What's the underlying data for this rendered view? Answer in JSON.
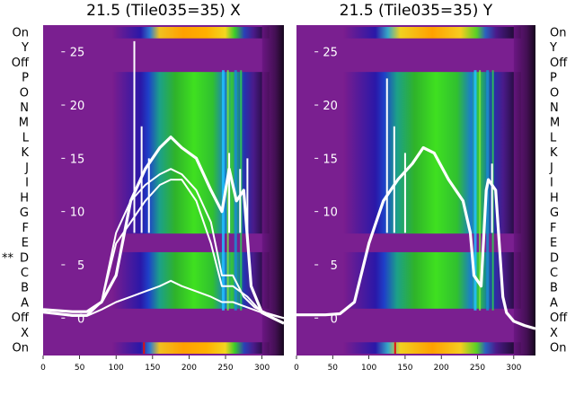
{
  "chart_data": [
    {
      "type": "heatmap",
      "title": "21.5 (Tile035=35) X",
      "x_ticks": [
        0,
        50,
        100,
        150,
        200,
        250,
        300
      ],
      "xlim": [
        0,
        330
      ],
      "overlay_ticks": [
        0,
        5,
        10,
        15,
        20,
        25
      ],
      "overlay_ylim": [
        -2,
        27
      ],
      "row_labels_side": "left",
      "row_labels": [
        "On",
        "Y",
        "Off",
        "P",
        "O",
        "N",
        "M",
        "L",
        "K",
        "J",
        "I",
        "H",
        "G",
        "F",
        "E",
        "D",
        "C",
        "B",
        "A",
        "Off",
        "X",
        "On"
      ],
      "marker": "**",
      "marker_row": "D",
      "series": [
        {
          "name": "",
          "x": [
            0,
            40,
            60,
            80,
            100,
            120,
            140,
            160,
            175,
            190,
            210,
            230,
            245,
            255,
            265,
            275,
            285,
            300,
            315,
            330
          ],
          "y": [
            0.8,
            0.6,
            0.6,
            1.5,
            4,
            11,
            14,
            16,
            17,
            16,
            15,
            12,
            10,
            14,
            11,
            12,
            3,
            0.5,
            0,
            -0.5
          ]
        },
        {
          "name": "",
          "x": [
            0,
            40,
            60,
            80,
            100,
            120,
            140,
            160,
            175,
            190,
            210,
            230,
            245,
            260,
            275,
            290,
            305,
            330
          ],
          "y": [
            0.6,
            0.3,
            0.3,
            1.5,
            8,
            11,
            12.5,
            13.5,
            14,
            13.5,
            12,
            9,
            4,
            4,
            2,
            1,
            0.5,
            0
          ]
        },
        {
          "name": "",
          "x": [
            0,
            40,
            60,
            80,
            100,
            120,
            140,
            160,
            175,
            190,
            210,
            230,
            245,
            260,
            280,
            300,
            330
          ],
          "y": [
            0.6,
            0.2,
            0.2,
            1.5,
            7,
            9,
            11,
            12.5,
            13,
            13,
            11,
            7,
            3,
            3,
            2,
            0.5,
            0
          ]
        },
        {
          "name": "",
          "x": [
            0,
            40,
            60,
            80,
            100,
            120,
            140,
            160,
            175,
            190,
            210,
            230,
            245,
            260,
            280,
            300,
            330
          ],
          "y": [
            0.5,
            0.2,
            0.2,
            0.8,
            1.5,
            2,
            2.5,
            3,
            3.5,
            3,
            2.5,
            2,
            1.5,
            1.5,
            1,
            0.5,
            0
          ]
        }
      ],
      "spikes": [
        {
          "x": 125,
          "y": 26
        },
        {
          "x": 135,
          "y": 18
        },
        {
          "x": 145,
          "y": 15
        },
        {
          "x": 255,
          "y": 15.5
        },
        {
          "x": 270,
          "y": 14
        },
        {
          "x": 280,
          "y": 15
        }
      ]
    },
    {
      "type": "heatmap",
      "title": "21.5 (Tile035=35) Y",
      "x_ticks": [
        0,
        50,
        100,
        150,
        200,
        250,
        300
      ],
      "xlim": [
        0,
        330
      ],
      "overlay_ticks": [
        0,
        5,
        10,
        15,
        20,
        25
      ],
      "overlay_ylim": [
        -2,
        27
      ],
      "row_labels_side": "right",
      "row_labels": [
        "On",
        "Y",
        "Off",
        "P",
        "O",
        "N",
        "M",
        "L",
        "K",
        "J",
        "I",
        "H",
        "G",
        "F",
        "E",
        "D",
        "C",
        "B",
        "A",
        "Off",
        "X",
        "On"
      ],
      "series": [
        {
          "name": "",
          "x": [
            0,
            40,
            60,
            80,
            100,
            120,
            140,
            160,
            175,
            190,
            210,
            230,
            240,
            245,
            255,
            262,
            265,
            275,
            285,
            290,
            300,
            315,
            330
          ],
          "y": [
            0.3,
            0.3,
            0.4,
            1.5,
            7,
            11,
            13,
            14.5,
            16,
            15.5,
            13,
            11,
            8,
            4,
            3,
            12,
            13,
            12,
            2,
            0.5,
            -0.3,
            -0.7,
            -1
          ]
        }
      ],
      "spikes": [
        {
          "x": 125,
          "y": 22.5
        },
        {
          "x": 135,
          "y": 18
        },
        {
          "x": 150,
          "y": 15.5
        },
        {
          "x": 270,
          "y": 14.5
        }
      ]
    }
  ]
}
